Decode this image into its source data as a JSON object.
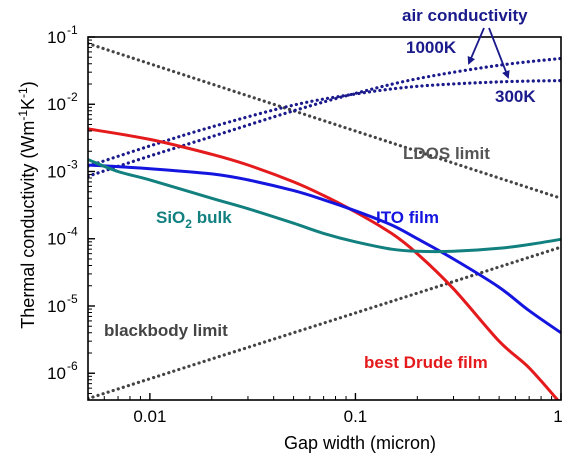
{
  "chart_data": {
    "type": "line",
    "title": "",
    "xlabel": "Gap width (micron)",
    "ylabel": "Thermal conductivity (Wm-1K-1)",
    "ylabel_parts": {
      "main": "Thermal conductivity (Wm",
      "sup1": "-1",
      "mid": "K",
      "sup2": "-1",
      "end": ")"
    },
    "xscale": "log",
    "yscale": "log",
    "xlim": [
      0.005,
      1
    ],
    "ylim": [
      4e-07,
      0.1
    ],
    "grid": false,
    "legend": "none",
    "x_ticks": [
      {
        "value": 0.01,
        "label": "0.01"
      },
      {
        "value": 0.1,
        "label": "0.1"
      },
      {
        "value": 1,
        "label": "1"
      }
    ],
    "y_ticks": [
      {
        "value": 1e-06,
        "base": "10",
        "exp": "-6"
      },
      {
        "value": 1e-05,
        "base": "10",
        "exp": "-5"
      },
      {
        "value": 0.0001,
        "base": "10",
        "exp": "-4"
      },
      {
        "value": 0.001,
        "base": "10",
        "exp": "-3"
      },
      {
        "value": 0.01,
        "base": "10",
        "exp": "-2"
      },
      {
        "value": 0.1,
        "base": "10",
        "exp": "-1"
      }
    ],
    "series": [
      {
        "key": "ldos",
        "color": "#444444",
        "style": "dotted",
        "x": [
          0.005,
          1
        ],
        "y": [
          0.08,
          0.0004
        ]
      },
      {
        "key": "blackbody",
        "color": "#444444",
        "style": "dotted",
        "x": [
          0.005,
          1
        ],
        "y": [
          4.2e-07,
          7.5e-05
        ]
      },
      {
        "key": "air1000",
        "color": "#1a1a8c",
        "style": "dotted",
        "x": [
          0.005,
          0.01,
          0.02,
          0.05,
          0.1,
          0.2,
          0.5,
          1
        ],
        "y": [
          0.00085,
          0.0017,
          0.0033,
          0.008,
          0.0145,
          0.024,
          0.038,
          0.048
        ]
      },
      {
        "key": "air300",
        "color": "#1a1a8c",
        "style": "dotted",
        "x": [
          0.005,
          0.01,
          0.02,
          0.05,
          0.1,
          0.2,
          0.5,
          1
        ],
        "y": [
          0.0012,
          0.0024,
          0.0046,
          0.0097,
          0.0142,
          0.0185,
          0.0215,
          0.0225
        ]
      },
      {
        "key": "drude",
        "color": "#e41a1c",
        "style": "solid",
        "x": [
          0.005,
          0.01,
          0.02,
          0.03,
          0.05,
          0.07,
          0.1,
          0.15,
          0.2,
          0.3,
          0.5,
          0.7,
          1
        ],
        "y": [
          0.0043,
          0.003,
          0.0018,
          0.00125,
          0.0007,
          0.00044,
          0.00025,
          0.00012,
          6e-05,
          1.8e-05,
          3e-06,
          1.2e-06,
          3.5e-07
        ]
      },
      {
        "key": "ito",
        "color": "#1515e0",
        "style": "solid",
        "x": [
          0.005,
          0.01,
          0.02,
          0.03,
          0.05,
          0.07,
          0.1,
          0.15,
          0.2,
          0.3,
          0.5,
          0.7,
          1
        ],
        "y": [
          0.00125,
          0.0011,
          0.00092,
          0.00075,
          0.00052,
          0.00038,
          0.00026,
          0.00016,
          0.0001,
          5e-05,
          1.9e-05,
          8.5e-06,
          4e-06
        ]
      },
      {
        "key": "sio2",
        "color": "#138080",
        "style": "solid",
        "x": [
          0.005,
          0.007,
          0.01,
          0.02,
          0.03,
          0.05,
          0.07,
          0.1,
          0.15,
          0.2,
          0.3,
          0.5,
          0.7,
          1
        ],
        "y": [
          0.0015,
          0.001,
          0.00075,
          0.0004,
          0.00028,
          0.00017,
          0.00012,
          9e-05,
          7e-05,
          6.5e-05,
          6.5e-05,
          7.2e-05,
          8.2e-05,
          9.8e-05
        ]
      }
    ],
    "annotations": [
      {
        "key": "air",
        "text": "air conductivity",
        "color": "#1a1a8c"
      },
      {
        "key": "k1000",
        "text": "1000K",
        "color": "#1a1a8c"
      },
      {
        "key": "k300",
        "text": "300K",
        "color": "#1a1a8c"
      },
      {
        "key": "ldos",
        "text": "LDOS limit",
        "color": "#555555"
      },
      {
        "key": "ito",
        "text": "ITO film",
        "color": "#1515e0"
      },
      {
        "key": "sio2",
        "text": "SiO",
        "sub": "2",
        "rest": " bulk",
        "color": "#138080"
      },
      {
        "key": "blackbody",
        "text": "blackbody limit",
        "color": "#444444"
      },
      {
        "key": "drude",
        "text": "best Drude film",
        "color": "#e41a1c"
      }
    ]
  }
}
